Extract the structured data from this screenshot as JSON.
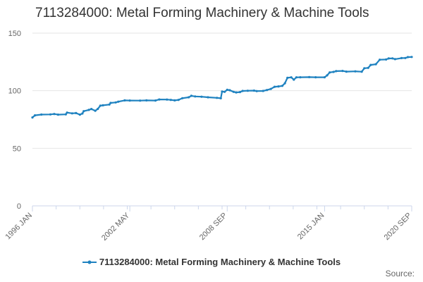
{
  "chart_data": {
    "type": "line",
    "title": "7113284000: Metal Forming Machinery & Machine Tools",
    "xlabel": "",
    "ylabel": "",
    "ylim": [
      0,
      150
    ],
    "yticks": [
      0,
      50,
      100,
      150
    ],
    "xlim": [
      "1996-01",
      "2020-09"
    ],
    "xticks": [
      "1996 JAN",
      "2002 MAY",
      "2008 SEP",
      "2015 JAN",
      "2020 SEP"
    ],
    "grid": true,
    "legend_position": "bottom",
    "series": [
      {
        "name": "7113284000: Metal Forming Machinery & Machine Tools",
        "color": "#1f82c0",
        "points": [
          [
            "1996-01",
            76.8
          ],
          [
            "1996-03",
            78.6
          ],
          [
            "1996-08",
            79.3
          ],
          [
            "1997-03",
            79.4
          ],
          [
            "1997-06",
            79.8
          ],
          [
            "1997-09",
            79.2
          ],
          [
            "1998-03",
            79.5
          ],
          [
            "1998-04",
            81.0
          ],
          [
            "1998-08",
            80.3
          ],
          [
            "1998-11",
            80.6
          ],
          [
            "1999-02",
            79.2
          ],
          [
            "1999-04",
            80.2
          ],
          [
            "1999-05",
            82.2
          ],
          [
            "1999-09",
            83.3
          ],
          [
            "1999-11",
            84.1
          ],
          [
            "2000-02",
            82.6
          ],
          [
            "2000-04",
            84.2
          ],
          [
            "2000-06",
            87.0
          ],
          [
            "2000-08",
            87.3
          ],
          [
            "2001-01",
            88.0
          ],
          [
            "2001-02",
            89.4
          ],
          [
            "2001-06",
            89.8
          ],
          [
            "2001-08",
            90.5
          ],
          [
            "2002-01",
            91.6
          ],
          [
            "2002-05",
            91.5
          ],
          [
            "2003-01",
            91.4
          ],
          [
            "2003-06",
            91.6
          ],
          [
            "2004-01",
            91.5
          ],
          [
            "2004-04",
            92.4
          ],
          [
            "2004-10",
            92.3
          ],
          [
            "2005-01",
            92.0
          ],
          [
            "2005-04",
            91.6
          ],
          [
            "2005-07",
            92.0
          ],
          [
            "2005-10",
            93.5
          ],
          [
            "2006-03",
            94.3
          ],
          [
            "2006-05",
            95.6
          ],
          [
            "2006-08",
            95.0
          ],
          [
            "2007-01",
            94.8
          ],
          [
            "2007-06",
            94.3
          ],
          [
            "2008-01",
            93.8
          ],
          [
            "2008-04",
            93.4
          ],
          [
            "2008-05",
            99.3
          ],
          [
            "2008-07",
            99.0
          ],
          [
            "2008-09",
            100.8
          ],
          [
            "2008-11",
            100.4
          ],
          [
            "2009-02",
            99.0
          ],
          [
            "2009-04",
            98.5
          ],
          [
            "2009-07",
            98.8
          ],
          [
            "2009-09",
            99.8
          ],
          [
            "2010-01",
            100.0
          ],
          [
            "2010-06",
            100.1
          ],
          [
            "2010-08",
            99.7
          ],
          [
            "2011-01",
            99.8
          ],
          [
            "2011-04",
            100.6
          ],
          [
            "2011-07",
            101.5
          ],
          [
            "2011-10",
            103.4
          ],
          [
            "2012-01",
            103.7
          ],
          [
            "2012-04",
            104.2
          ],
          [
            "2012-06",
            106.5
          ],
          [
            "2012-08",
            111.2
          ],
          [
            "2012-11",
            111.6
          ],
          [
            "2013-01",
            109.6
          ],
          [
            "2013-03",
            111.6
          ],
          [
            "2013-06",
            111.7
          ],
          [
            "2014-01",
            111.8
          ],
          [
            "2014-06",
            111.7
          ],
          [
            "2015-01",
            111.7
          ],
          [
            "2015-03",
            113.3
          ],
          [
            "2015-05",
            115.9
          ],
          [
            "2015-08",
            116.3
          ],
          [
            "2015-10",
            117.0
          ],
          [
            "2016-03",
            117.2
          ],
          [
            "2016-06",
            116.6
          ],
          [
            "2017-01",
            116.8
          ],
          [
            "2017-06",
            116.5
          ],
          [
            "2017-08",
            119.5
          ],
          [
            "2017-11",
            119.8
          ],
          [
            "2018-01",
            122.4
          ],
          [
            "2018-05",
            123.0
          ],
          [
            "2018-08",
            126.9
          ],
          [
            "2019-01",
            127.1
          ],
          [
            "2019-03",
            128.0
          ],
          [
            "2019-06",
            128.1
          ],
          [
            "2019-08",
            127.4
          ],
          [
            "2020-01",
            128.3
          ],
          [
            "2020-04",
            128.4
          ],
          [
            "2020-06",
            129.2
          ],
          [
            "2020-09",
            129.3
          ]
        ]
      }
    ],
    "source_label": "Source:"
  }
}
